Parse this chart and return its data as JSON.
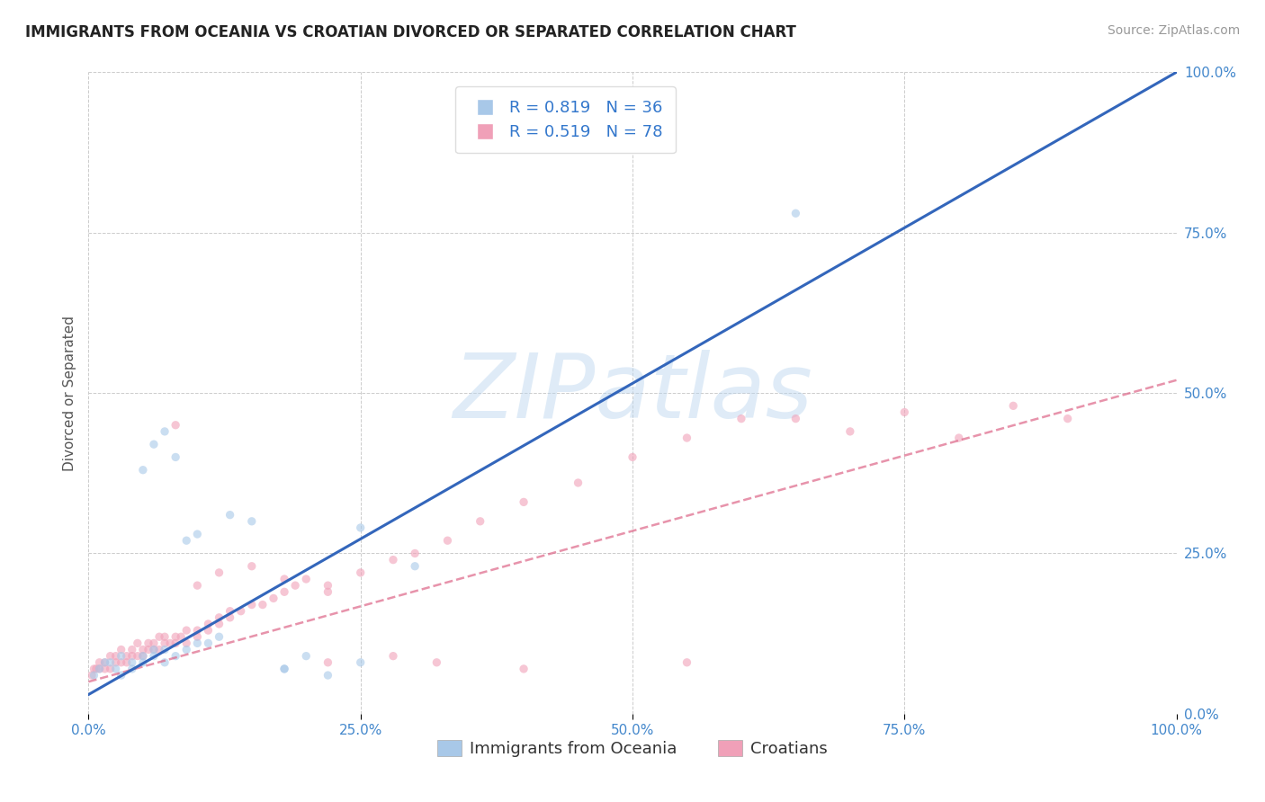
{
  "title": "IMMIGRANTS FROM OCEANIA VS CROATIAN DIVORCED OR SEPARATED CORRELATION CHART",
  "source": "Source: ZipAtlas.com",
  "ylabel": "Divorced or Separated",
  "watermark": "ZIPatlas",
  "blue_color": "#a8c8e8",
  "pink_color": "#f0a0b8",
  "blue_line_color": "#3366bb",
  "pink_line_color": "#dd6688",
  "legend_blue_label": "R = 0.819   N = 36",
  "legend_pink_label": "R = 0.519   N = 78",
  "text_blue_color": "#3377cc",
  "text_pink_color": "#cc4466",
  "axis_tick_color": "#4488cc",
  "title_color": "#222222",
  "background_color": "#ffffff",
  "xlim": [
    0.0,
    1.0
  ],
  "ylim": [
    0.0,
    1.0
  ],
  "xtick_labels": [
    "0.0%",
    "25.0%",
    "50.0%",
    "75.0%",
    "100.0%"
  ],
  "xtick_positions": [
    0.0,
    0.25,
    0.5,
    0.75,
    1.0
  ],
  "ytick_right_labels": [
    "0.0%",
    "25.0%",
    "50.0%",
    "75.0%",
    "100.0%"
  ],
  "ytick_positions": [
    0.0,
    0.25,
    0.5,
    0.75,
    1.0
  ],
  "blue_scatter_x": [
    0.005,
    0.01,
    0.015,
    0.02,
    0.025,
    0.03,
    0.03,
    0.04,
    0.04,
    0.05,
    0.05,
    0.06,
    0.06,
    0.07,
    0.07,
    0.08,
    0.09,
    0.1,
    0.11,
    0.12,
    0.05,
    0.06,
    0.07,
    0.08,
    0.09,
    0.1,
    0.13,
    0.15,
    0.18,
    0.22,
    0.25,
    0.3,
    0.65,
    0.18,
    0.2,
    0.25
  ],
  "blue_scatter_y": [
    0.06,
    0.07,
    0.08,
    0.08,
    0.07,
    0.09,
    0.06,
    0.08,
    0.07,
    0.09,
    0.08,
    0.1,
    0.09,
    0.08,
    0.1,
    0.09,
    0.1,
    0.11,
    0.11,
    0.12,
    0.38,
    0.42,
    0.44,
    0.4,
    0.27,
    0.28,
    0.31,
    0.3,
    0.07,
    0.06,
    0.08,
    0.23,
    0.78,
    0.07,
    0.09,
    0.29
  ],
  "pink_scatter_x": [
    0.003,
    0.005,
    0.007,
    0.01,
    0.01,
    0.015,
    0.015,
    0.02,
    0.02,
    0.025,
    0.025,
    0.03,
    0.03,
    0.035,
    0.035,
    0.04,
    0.04,
    0.045,
    0.045,
    0.05,
    0.05,
    0.055,
    0.055,
    0.06,
    0.06,
    0.065,
    0.065,
    0.07,
    0.07,
    0.075,
    0.08,
    0.08,
    0.085,
    0.09,
    0.09,
    0.1,
    0.1,
    0.11,
    0.11,
    0.12,
    0.12,
    0.13,
    0.13,
    0.14,
    0.15,
    0.16,
    0.17,
    0.18,
    0.19,
    0.2,
    0.22,
    0.22,
    0.25,
    0.28,
    0.3,
    0.33,
    0.36,
    0.4,
    0.45,
    0.5,
    0.55,
    0.6,
    0.65,
    0.7,
    0.75,
    0.8,
    0.85,
    0.9,
    0.08,
    0.1,
    0.12,
    0.15,
    0.18,
    0.22,
    0.28,
    0.32,
    0.4,
    0.55
  ],
  "pink_scatter_y": [
    0.06,
    0.07,
    0.07,
    0.07,
    0.08,
    0.07,
    0.08,
    0.07,
    0.09,
    0.08,
    0.09,
    0.08,
    0.1,
    0.08,
    0.09,
    0.09,
    0.1,
    0.09,
    0.11,
    0.09,
    0.1,
    0.1,
    0.11,
    0.1,
    0.11,
    0.1,
    0.12,
    0.11,
    0.12,
    0.11,
    0.12,
    0.11,
    0.12,
    0.11,
    0.13,
    0.12,
    0.13,
    0.13,
    0.14,
    0.14,
    0.15,
    0.15,
    0.16,
    0.16,
    0.17,
    0.17,
    0.18,
    0.19,
    0.2,
    0.21,
    0.19,
    0.2,
    0.22,
    0.24,
    0.25,
    0.27,
    0.3,
    0.33,
    0.36,
    0.4,
    0.43,
    0.46,
    0.46,
    0.44,
    0.47,
    0.43,
    0.48,
    0.46,
    0.45,
    0.2,
    0.22,
    0.23,
    0.21,
    0.08,
    0.09,
    0.08,
    0.07,
    0.08
  ],
  "blue_trend_x": [
    0.0,
    1.0
  ],
  "blue_trend_y": [
    0.03,
    1.0
  ],
  "pink_trend_x": [
    0.0,
    1.0
  ],
  "pink_trend_y": [
    0.05,
    0.52
  ],
  "grid_color": "#cccccc",
  "scatter_size": 45,
  "scatter_alpha": 0.6,
  "legend_fontsize": 13,
  "title_fontsize": 12,
  "tick_fontsize": 11,
  "ylabel_fontsize": 11,
  "source_fontsize": 10,
  "bottom_legend_labels": [
    "Immigrants from Oceania",
    "Croatians"
  ],
  "bottom_legend_colors": [
    "#a8c8e8",
    "#f0a0b8"
  ]
}
